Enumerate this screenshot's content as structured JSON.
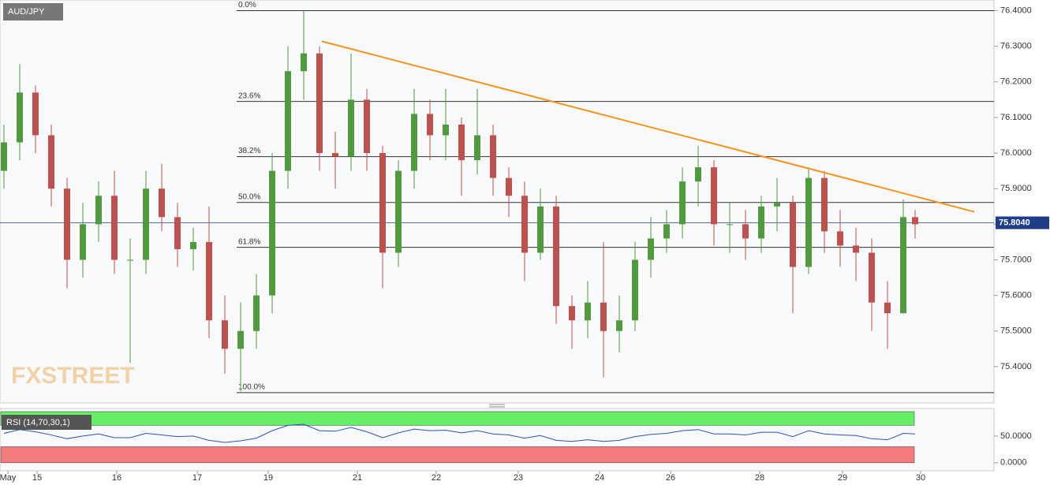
{
  "chart_data": [
    {
      "type": "candlestick",
      "title": "AUD/JPY",
      "watermark": "FXSTREET",
      "x": [
        0.05,
        0.25,
        0.45,
        0.65,
        0.85,
        1.05,
        1.25,
        1.45,
        1.65,
        1.85,
        2.05,
        2.25,
        2.45,
        2.65,
        2.85,
        3.05,
        3.25,
        3.45,
        3.65,
        3.85,
        4.05,
        4.25,
        4.45,
        4.65,
        4.85,
        5.05,
        5.25,
        5.45,
        5.65,
        5.85,
        6.05,
        6.25,
        6.45,
        6.65,
        6.85,
        7.05,
        7.25,
        7.45,
        7.65,
        7.85,
        8.05,
        8.25,
        8.45,
        8.65,
        8.85,
        9.05,
        9.25,
        9.45,
        9.65,
        9.85,
        10.05,
        10.25,
        10.45,
        10.65,
        10.85,
        11.05,
        11.25,
        11.45,
        11.6
      ],
      "open": [
        75.95,
        76.03,
        76.17,
        76.05,
        75.9,
        75.7,
        75.8,
        75.88,
        75.7,
        75.7,
        75.9,
        75.82,
        75.73,
        75.75,
        75.53,
        75.45,
        75.5,
        75.6,
        75.95,
        76.23,
        76.28,
        76.0,
        75.99,
        76.15,
        76.0,
        75.72,
        75.95,
        76.11,
        76.05,
        76.08,
        75.98,
        76.05,
        75.93,
        75.88,
        75.72,
        75.85,
        75.57,
        75.53,
        75.58,
        75.5,
        75.53,
        75.7,
        75.76,
        75.8,
        75.92,
        75.96,
        75.8,
        75.8,
        75.76,
        75.85,
        75.86,
        75.68,
        75.93,
        75.78,
        75.74,
        75.72,
        75.58,
        75.55,
        75.82
      ],
      "high": [
        76.08,
        76.25,
        76.19,
        76.08,
        75.93,
        75.86,
        75.92,
        75.95,
        75.76,
        75.95,
        75.97,
        75.86,
        75.79,
        75.85,
        75.6,
        75.58,
        75.66,
        76.0,
        76.3,
        76.4,
        76.3,
        76.06,
        76.28,
        76.18,
        76.02,
        75.98,
        76.18,
        76.15,
        76.18,
        76.1,
        76.18,
        76.08,
        75.96,
        75.92,
        75.9,
        75.88,
        75.6,
        75.64,
        75.75,
        75.6,
        75.75,
        75.82,
        75.84,
        75.96,
        76.02,
        75.98,
        75.86,
        75.84,
        75.88,
        75.93,
        75.88,
        75.96,
        75.95,
        75.84,
        75.79,
        75.76,
        75.64,
        75.87,
        75.84
      ],
      "low": [
        75.9,
        75.98,
        76.0,
        75.85,
        75.62,
        75.65,
        75.75,
        75.66,
        75.41,
        75.66,
        75.78,
        75.68,
        75.67,
        75.48,
        75.38,
        75.33,
        75.45,
        75.55,
        75.9,
        76.15,
        75.95,
        75.9,
        75.95,
        75.95,
        75.62,
        75.68,
        75.9,
        75.98,
        75.98,
        75.88,
        75.94,
        75.88,
        75.82,
        75.64,
        75.7,
        75.52,
        75.45,
        75.48,
        75.37,
        75.44,
        75.5,
        75.65,
        75.72,
        75.76,
        75.85,
        75.74,
        75.72,
        75.7,
        75.72,
        75.78,
        75.55,
        75.66,
        75.72,
        75.68,
        75.64,
        75.5,
        75.45,
        75.55,
        75.76
      ],
      "close": [
        76.03,
        76.17,
        76.05,
        75.9,
        75.7,
        75.8,
        75.88,
        75.7,
        75.7,
        75.9,
        75.82,
        75.73,
        75.75,
        75.53,
        75.45,
        75.5,
        75.6,
        75.95,
        76.23,
        76.28,
        76.0,
        75.99,
        76.15,
        76.0,
        75.72,
        75.95,
        76.11,
        76.05,
        76.08,
        75.98,
        76.05,
        75.93,
        75.88,
        75.72,
        75.85,
        75.57,
        75.53,
        75.58,
        75.5,
        75.53,
        75.7,
        75.76,
        75.8,
        75.92,
        75.96,
        75.8,
        75.8,
        75.76,
        75.85,
        75.86,
        75.68,
        75.93,
        75.78,
        75.74,
        75.72,
        75.58,
        75.55,
        75.82,
        75.8
      ],
      "up_color": "#4e9a3c",
      "down_color": "#c0504d",
      "xlim": [
        0,
        12.6
      ],
      "ylim": [
        75.3,
        76.43
      ],
      "yticks": [
        {
          "value": 75.4,
          "label": "75.4000"
        },
        {
          "value": 75.5,
          "label": "75.5000"
        },
        {
          "value": 75.6,
          "label": "75.6000"
        },
        {
          "value": 75.7,
          "label": "75.7000"
        },
        {
          "value": 75.8,
          "label": "75.8000"
        },
        {
          "value": 75.9,
          "label": "75.9000"
        },
        {
          "value": 76.0,
          "label": "76.0000"
        },
        {
          "value": 76.1,
          "label": "76.1000"
        },
        {
          "value": 76.2,
          "label": "76.2000"
        },
        {
          "value": 76.3,
          "label": "76.3000"
        },
        {
          "value": 76.4,
          "label": "76.4000"
        }
      ],
      "fib_levels": [
        {
          "label": "0.0%",
          "value": 76.4
        },
        {
          "label": "23.6%",
          "value": 76.145
        },
        {
          "label": "38.2%",
          "value": 75.99
        },
        {
          "label": "50.0%",
          "value": 75.861
        },
        {
          "label": "61.8%",
          "value": 75.735
        },
        {
          "label": "100.0%",
          "value": 75.327
        }
      ],
      "trendline": {
        "x": [
          4.08,
          12.35
        ],
        "values": [
          76.314,
          75.835
        ],
        "color": "#f7931a"
      },
      "last_price": {
        "value": 75.804,
        "label": "75.8040",
        "color": "#1f3c88"
      }
    },
    {
      "type": "line",
      "title": "RSI (14,70,30,1)",
      "color": "#2a52be",
      "x": [
        0.05,
        0.25,
        0.45,
        0.65,
        0.85,
        1.05,
        1.25,
        1.45,
        1.65,
        1.85,
        2.05,
        2.25,
        2.45,
        2.65,
        2.85,
        3.05,
        3.25,
        3.45,
        3.65,
        3.85,
        4.05,
        4.25,
        4.45,
        4.65,
        4.85,
        5.05,
        5.25,
        5.45,
        5.65,
        5.85,
        6.05,
        6.25,
        6.45,
        6.65,
        6.85,
        7.05,
        7.25,
        7.45,
        7.65,
        7.85,
        8.05,
        8.25,
        8.45,
        8.65,
        8.85,
        9.05,
        9.25,
        9.45,
        9.65,
        9.85,
        10.05,
        10.25,
        10.45,
        10.65,
        10.85,
        11.05,
        11.25,
        11.45,
        11.6
      ],
      "values": [
        55,
        62,
        58,
        52,
        45,
        50,
        54,
        47,
        47,
        55,
        52,
        49,
        50,
        42,
        38,
        41,
        46,
        60,
        70,
        72,
        60,
        59,
        66,
        58,
        47,
        56,
        63,
        60,
        61,
        56,
        60,
        54,
        52,
        46,
        51,
        42,
        40,
        43,
        40,
        42,
        49,
        53,
        55,
        60,
        62,
        54,
        54,
        52,
        57,
        57,
        49,
        60,
        54,
        52,
        51,
        45,
        43,
        55,
        54
      ],
      "overbought": 70,
      "oversold": 30,
      "overbought_color": "#66ee66",
      "oversold_color": "#f47c7c",
      "xlim": [
        0,
        12.6
      ],
      "ylim": [
        -15,
        100
      ],
      "yticks": [
        {
          "value": 0,
          "label": "0.0000"
        },
        {
          "value": 50,
          "label": "50.0000"
        }
      ],
      "xticks": [
        {
          "value": 0.1,
          "label": "May"
        },
        {
          "value": 0.47,
          "label": "15"
        },
        {
          "value": 1.48,
          "label": "16"
        },
        {
          "value": 2.5,
          "label": "17"
        },
        {
          "value": 3.4,
          "label": "19"
        },
        {
          "value": 4.53,
          "label": "21"
        },
        {
          "value": 5.53,
          "label": "22"
        },
        {
          "value": 6.57,
          "label": "23"
        },
        {
          "value": 7.6,
          "label": "24"
        },
        {
          "value": 8.5,
          "label": "26"
        },
        {
          "value": 9.63,
          "label": "28"
        },
        {
          "value": 10.68,
          "label": "29"
        },
        {
          "value": 11.67,
          "label": "30"
        }
      ]
    }
  ]
}
